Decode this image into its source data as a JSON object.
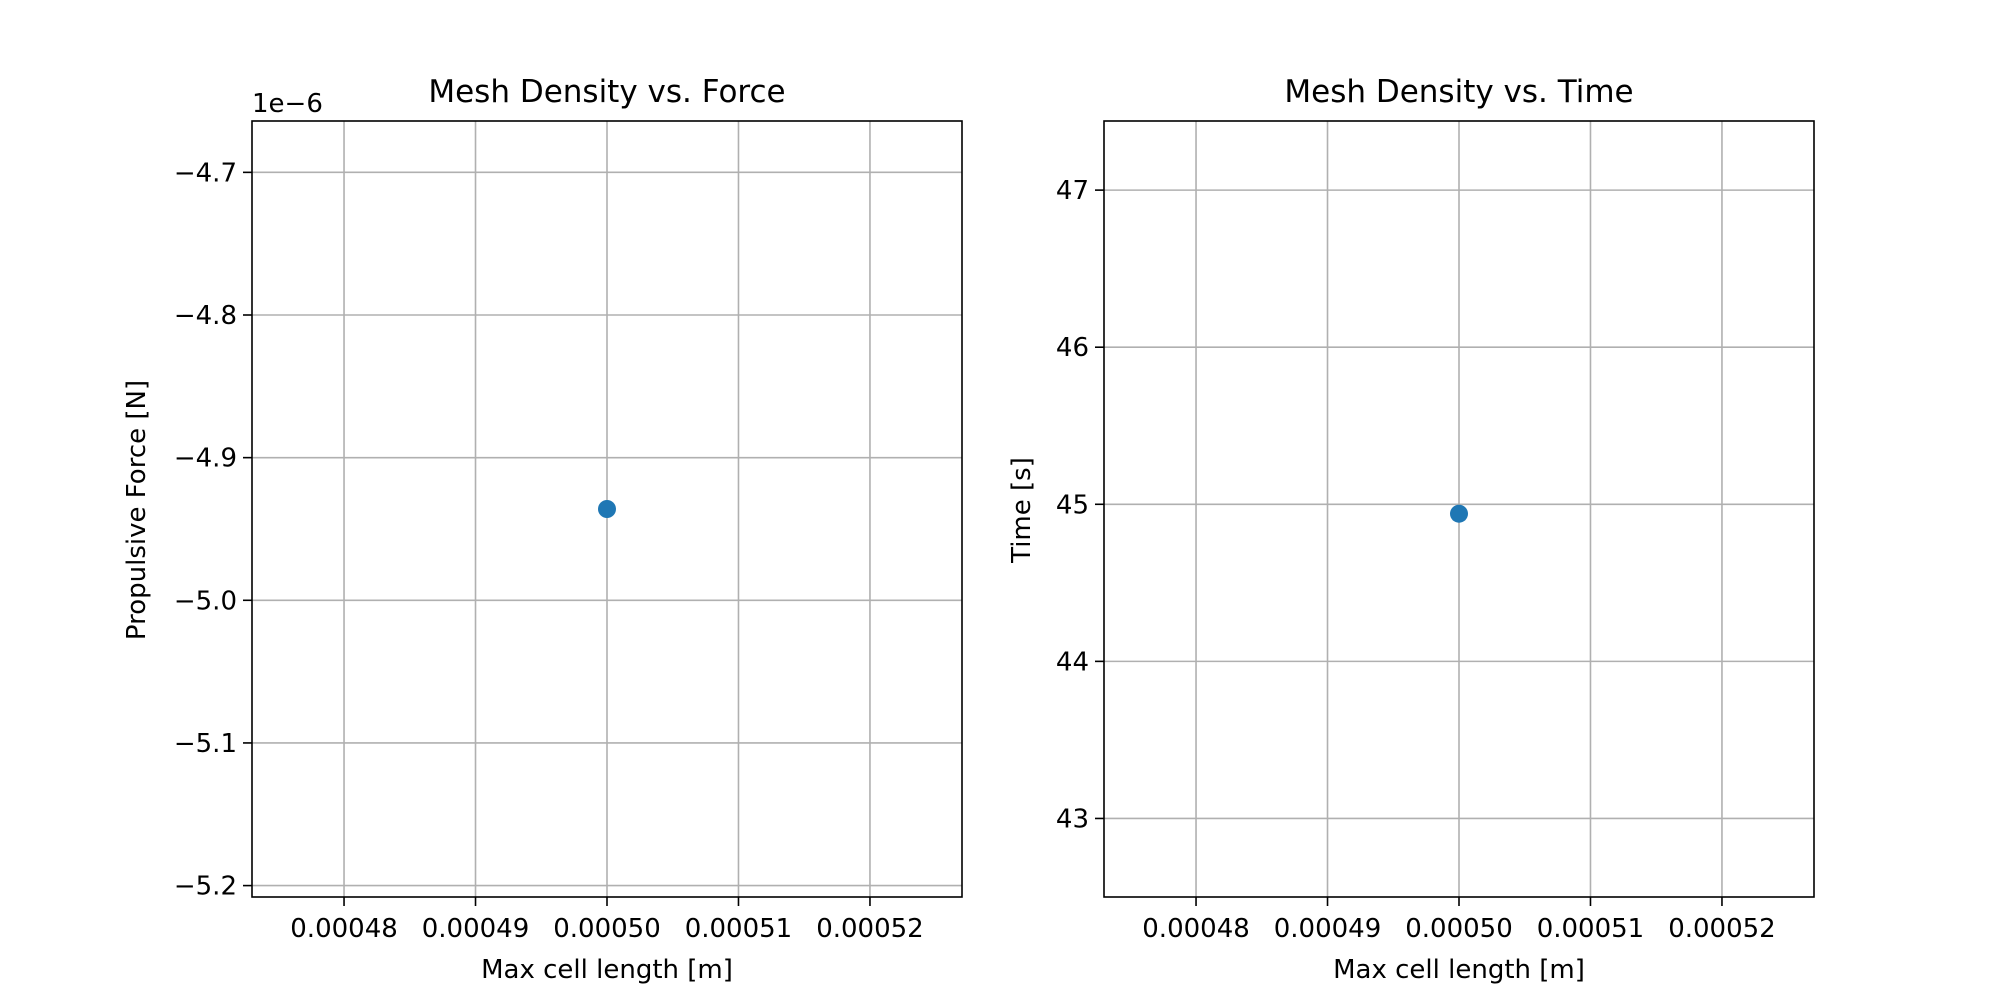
{
  "chart_data": [
    {
      "type": "scatter",
      "title": "Mesh Density vs. Force",
      "xlabel": "Max cell length [m]",
      "ylabel": "Propulsive Force [N]",
      "offset_label": "1e−6",
      "xlim": [
        0.000473,
        0.000527
      ],
      "ylim": [
        -5.208,
        -4.664
      ],
      "xticks": [
        0.00048,
        0.00049,
        0.0005,
        0.00051,
        0.00052
      ],
      "xtick_labels": [
        "0.00048",
        "0.00049",
        "0.00050",
        "0.00051",
        "0.00052"
      ],
      "yticks": [
        -5.2,
        -5.1,
        -5.0,
        -4.9,
        -4.8,
        -4.7
      ],
      "ytick_labels": [
        "−5.2",
        "−5.1",
        "−5.0",
        "−4.9",
        "−4.8",
        "−4.7"
      ],
      "grid": true,
      "color": "#1f77b4",
      "points": [
        {
          "x": 0.0005,
          "y": -4.936
        }
      ]
    },
    {
      "type": "scatter",
      "title": "Mesh Density vs. Time",
      "xlabel": "Max cell length [m]",
      "ylabel": "Time [s]",
      "offset_label": "",
      "xlim": [
        0.000473,
        0.000527
      ],
      "ylim": [
        42.5,
        47.44
      ],
      "xticks": [
        0.00048,
        0.00049,
        0.0005,
        0.00051,
        0.00052
      ],
      "xtick_labels": [
        "0.00048",
        "0.00049",
        "0.00050",
        "0.00051",
        "0.00052"
      ],
      "yticks": [
        43,
        44,
        45,
        46,
        47
      ],
      "ytick_labels": [
        "43",
        "44",
        "45",
        "46",
        "47"
      ],
      "grid": true,
      "color": "#1f77b4",
      "points": [
        {
          "x": 0.0005,
          "y": 44.94
        }
      ]
    }
  ]
}
